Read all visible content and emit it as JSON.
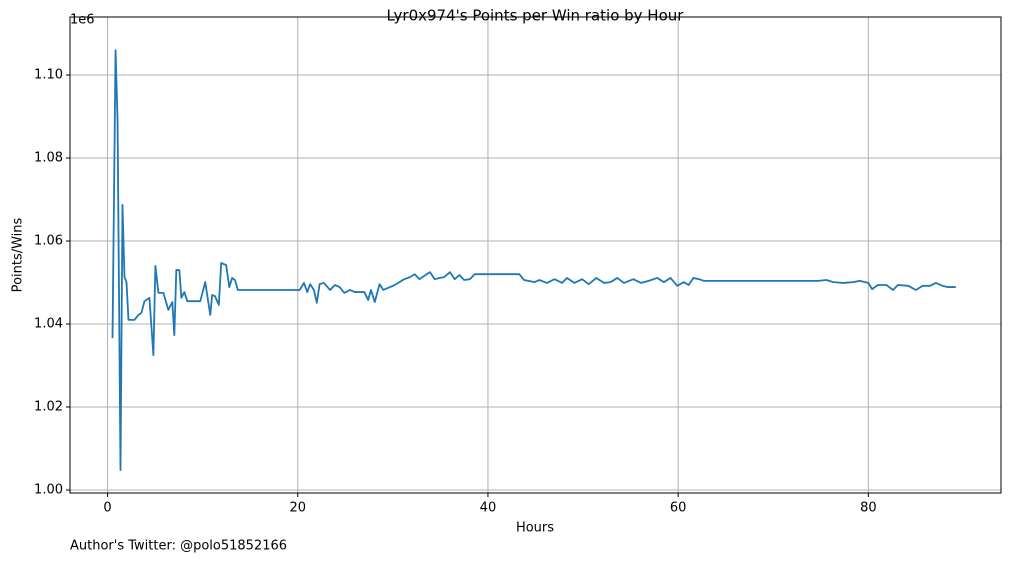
{
  "chart_data": {
    "type": "line",
    "title": "Lyr0x974's Points per Win ratio by Hour",
    "xlabel": "Hours",
    "ylabel": "Points/Wins",
    "y_offset_label": "1e6",
    "footer": "Author's Twitter: @polo51852166",
    "grid": true,
    "xlim": [
      -3.95,
      93.95
    ],
    "ylim": [
      999280,
      1113980
    ],
    "xticks": [
      0,
      20,
      40,
      60,
      80
    ],
    "yticks": [
      {
        "value": 1000000,
        "label": "1.00"
      },
      {
        "value": 1020000,
        "label": "1.02"
      },
      {
        "value": 1040000,
        "label": "1.04"
      },
      {
        "value": 1060000,
        "label": "1.06"
      },
      {
        "value": 1080000,
        "label": "1.08"
      },
      {
        "value": 1100000,
        "label": "1.10"
      }
    ],
    "x": [
      0.52,
      0.84,
      1.05,
      1.36,
      1.57,
      1.78,
      1.99,
      2.2,
      2.83,
      3.25,
      3.56,
      3.88,
      4.4,
      4.82,
      5.03,
      5.35,
      5.87,
      6.39,
      6.81,
      7.02,
      7.23,
      7.55,
      7.76,
      8.07,
      8.39,
      9.75,
      10.27,
      10.8,
      11.0,
      11.3,
      11.7,
      11.95,
      12.47,
      12.8,
      13.1,
      13.4,
      13.7,
      20.2,
      20.65,
      21.0,
      21.3,
      21.7,
      22.0,
      22.3,
      22.75,
      23.4,
      23.9,
      24.4,
      24.9,
      25.5,
      26.0,
      27.0,
      27.4,
      27.7,
      28.1,
      28.6,
      29.0,
      29.7,
      30.2,
      30.7,
      31.2,
      31.8,
      32.3,
      32.8,
      33.3,
      33.9,
      34.4,
      34.9,
      35.4,
      36.0,
      36.5,
      37.0,
      37.5,
      38.1,
      38.6,
      43.3,
      43.8,
      44.9,
      45.4,
      46.2,
      47.0,
      47.8,
      48.3,
      49.1,
      49.9,
      50.6,
      51.4,
      52.2,
      52.9,
      53.6,
      54.3,
      55.3,
      56.1,
      56.9,
      57.8,
      58.5,
      59.2,
      59.9,
      60.6,
      61.1,
      61.6,
      62.2,
      62.7,
      74.7,
      75.6,
      76.3,
      77.4,
      78.4,
      79.1,
      80.0,
      80.4,
      81.0,
      81.9,
      82.6,
      83.1,
      84.2,
      85.0,
      85.7,
      86.5,
      87.1,
      87.8,
      88.4,
      89.2
    ],
    "series": [
      {
        "color": "#1f77b4",
        "values": [
          1036600,
          1106000,
          1089200,
          1004800,
          1068700,
          1051300,
          1050100,
          1041000,
          1041000,
          1042200,
          1042700,
          1045500,
          1046300,
          1032500,
          1054000,
          1047500,
          1047500,
          1043400,
          1045300,
          1037300,
          1053000,
          1053000,
          1046300,
          1047700,
          1045500,
          1045500,
          1050100,
          1042200,
          1047000,
          1046700,
          1044600,
          1054700,
          1054200,
          1048900,
          1051100,
          1050600,
          1048200,
          1048200,
          1049900,
          1047700,
          1049600,
          1048200,
          1045100,
          1049600,
          1049900,
          1048200,
          1049400,
          1048900,
          1047500,
          1048200,
          1047700,
          1047700,
          1045800,
          1048200,
          1045300,
          1049600,
          1048200,
          1048900,
          1049400,
          1050100,
          1050800,
          1051300,
          1052000,
          1050800,
          1051600,
          1052500,
          1050800,
          1051100,
          1051300,
          1052500,
          1050800,
          1051800,
          1050600,
          1050800,
          1052000,
          1052000,
          1050600,
          1050100,
          1050600,
          1049900,
          1050800,
          1049900,
          1051100,
          1049900,
          1050800,
          1049600,
          1051100,
          1049900,
          1050100,
          1051100,
          1049900,
          1050800,
          1049900,
          1050400,
          1051100,
          1050100,
          1051100,
          1049200,
          1050100,
          1049400,
          1051100,
          1050800,
          1050400,
          1050400,
          1050600,
          1050100,
          1049900,
          1050100,
          1050400,
          1049900,
          1048400,
          1049400,
          1049400,
          1048200,
          1049400,
          1049200,
          1048200,
          1049200,
          1049200,
          1049900,
          1049200,
          1048900,
          1048900
        ]
      }
    ]
  }
}
